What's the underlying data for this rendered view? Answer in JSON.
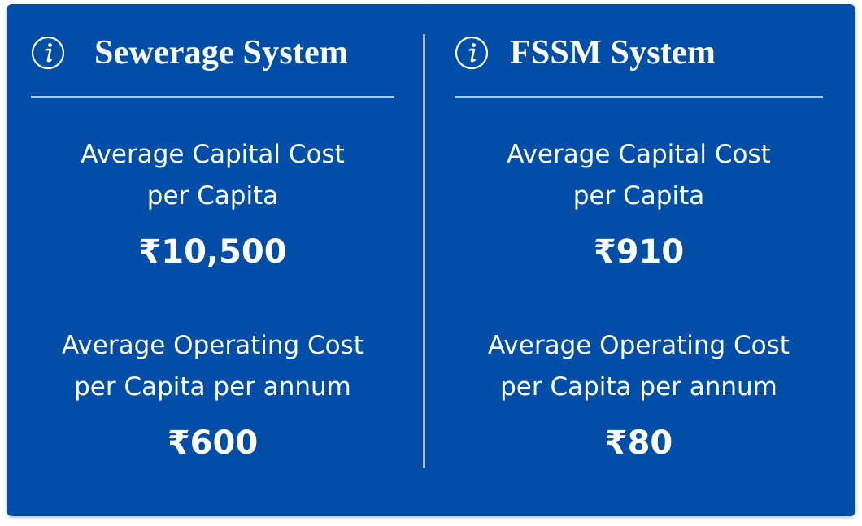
{
  "colors": {
    "card_background": "#004ea8",
    "text": "#ffffff",
    "divider": "#a9b9cf"
  },
  "panels": [
    {
      "icon": "info-icon",
      "title": "Sewerage System",
      "capital_label_line1": "Average Capital Cost",
      "capital_label_line2": "per Capita",
      "capital_value": "₹10,500",
      "operating_label_line1": "Average Operating Cost",
      "operating_label_line2": "per Capita per annum",
      "operating_value": "₹600"
    },
    {
      "icon": "info-icon",
      "title": "FSSM System",
      "capital_label_line1": "Average Capital Cost",
      "capital_label_line2": "per Capita",
      "capital_value": "₹910",
      "operating_label_line1": "Average Operating Cost",
      "operating_label_line2": "per Capita per annum",
      "operating_value": "₹80"
    }
  ]
}
